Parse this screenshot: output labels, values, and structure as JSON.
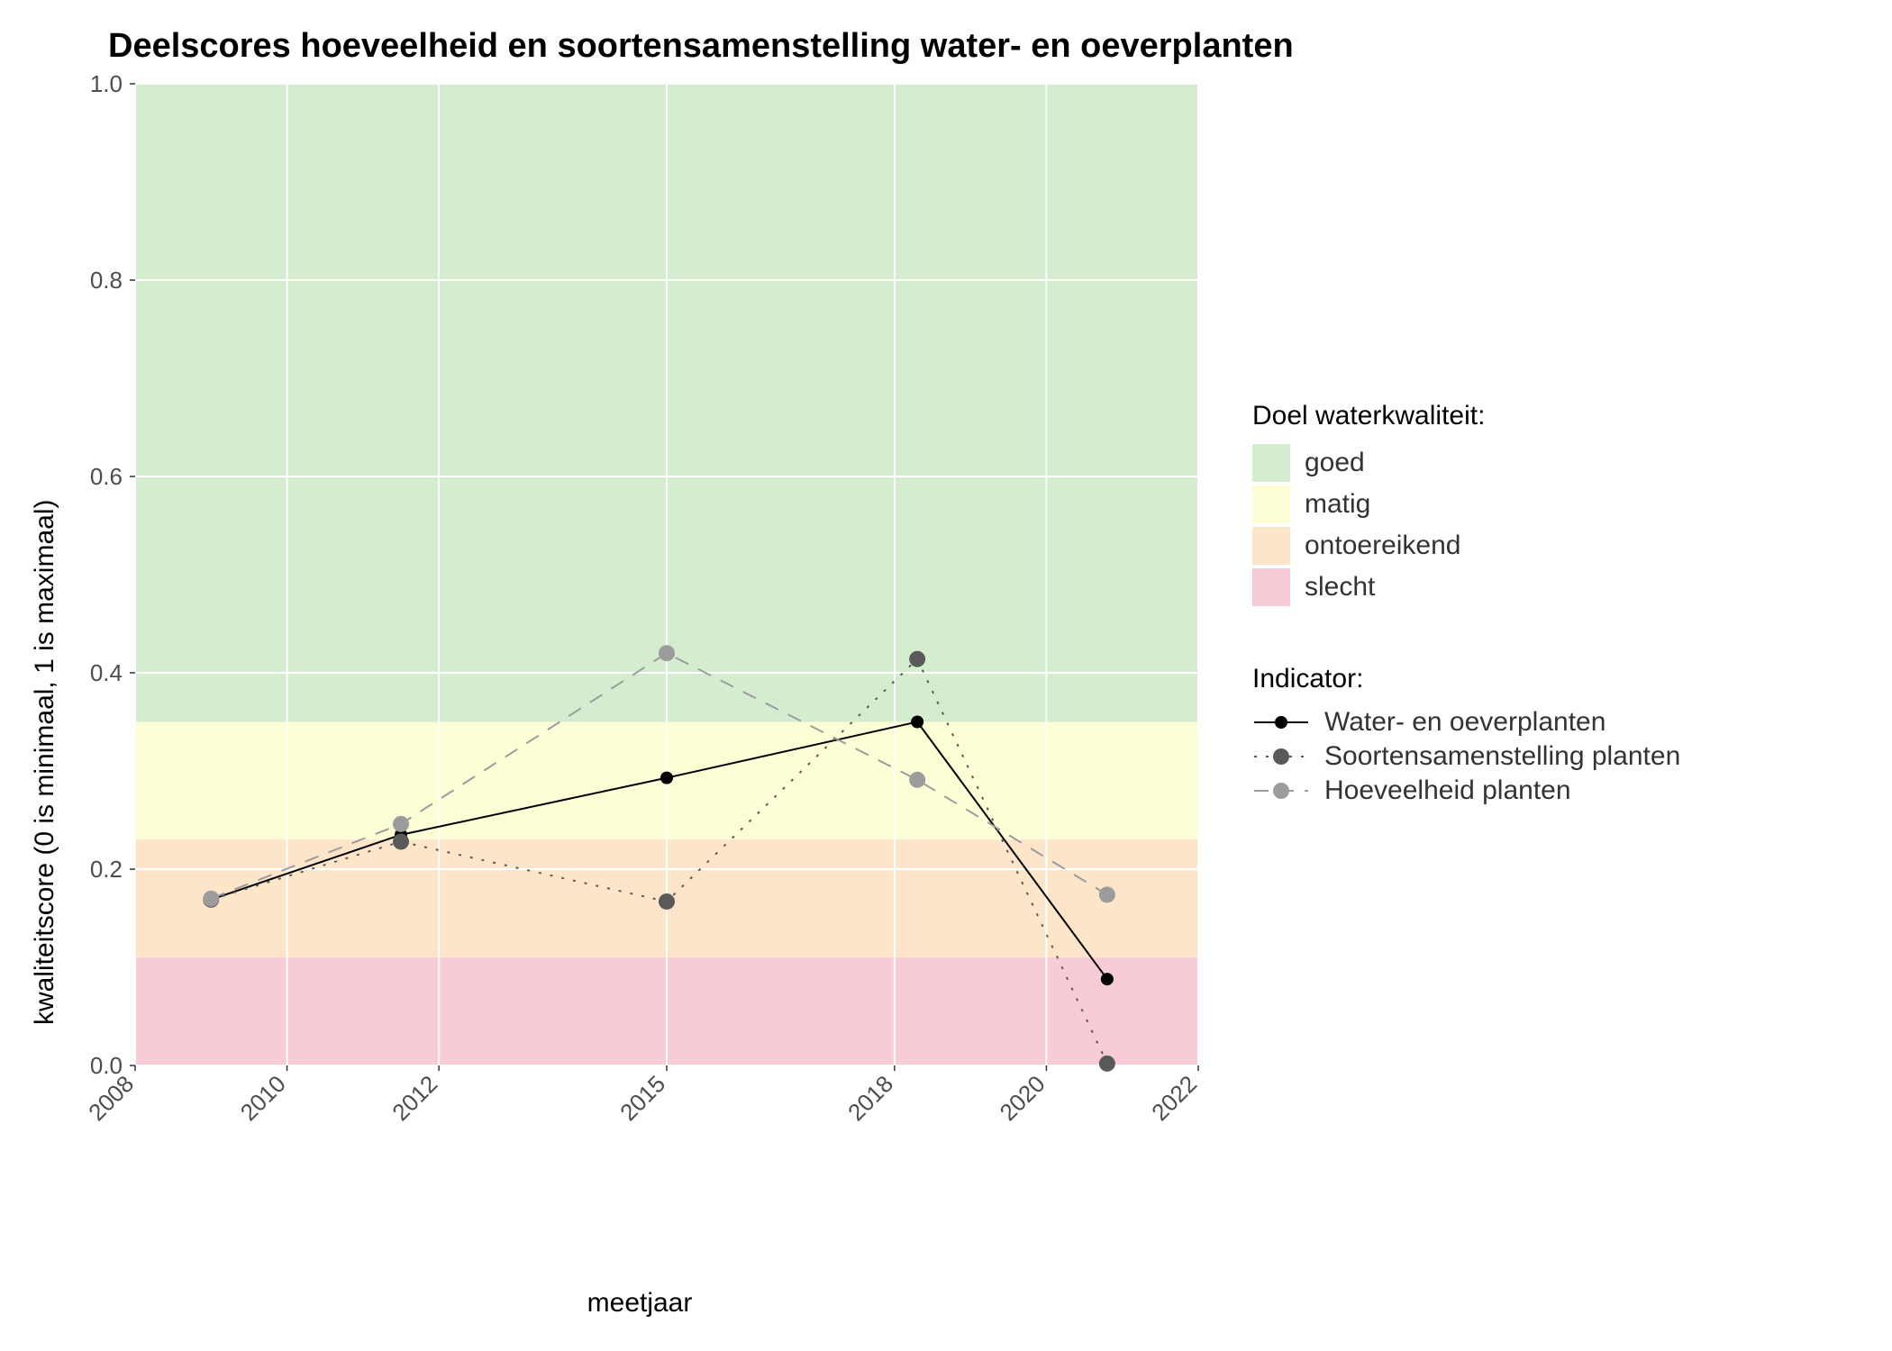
{
  "chart": {
    "type": "line",
    "title": "Deelscores hoeveelheid en soortensamenstelling water- en oeverplanten",
    "title_fontsize": 38,
    "xlabel": "meetjaar",
    "ylabel": "kwaliteitscore (0 is minimaal, 1 is maximaal)",
    "label_fontsize": 30,
    "tick_fontsize": 26,
    "xlim": [
      2008,
      2022
    ],
    "ylim": [
      0.0,
      1.0
    ],
    "xticks": [
      2008,
      2010,
      2012,
      2015,
      2018,
      2020,
      2022
    ],
    "yticks": [
      0.0,
      0.2,
      0.4,
      0.6,
      0.8,
      1.0
    ],
    "plot_background": "#ebebeb",
    "grid_color": "#ffffff",
    "axis_text_color": "#4d4d4d",
    "xtick_rotation": 45,
    "bands": [
      {
        "label": "goed",
        "from": 0.35,
        "to": 1.0,
        "color": "#d4edce"
      },
      {
        "label": "matig",
        "from": 0.23,
        "to": 0.35,
        "color": "#fdfdd6"
      },
      {
        "label": "ontoereikend",
        "from": 0.11,
        "to": 0.23,
        "color": "#fde5ca"
      },
      {
        "label": "slecht",
        "from": 0.0,
        "to": 0.11,
        "color": "#f7ccd6"
      }
    ],
    "series": [
      {
        "name": "Water- en oeverplanten",
        "color": "#000000",
        "marker_color": "#000000",
        "marker_size": 7,
        "line_width": 2,
        "dash": "solid",
        "x": [
          2009,
          2011.5,
          2015,
          2018.3,
          2020.8
        ],
        "y": [
          0.169,
          0.235,
          0.293,
          0.35,
          0.088
        ]
      },
      {
        "name": "Soortensamenstelling planten",
        "color": "#5a5a5a",
        "marker_color": "#5a5a5a",
        "marker_size": 9,
        "line_width": 2,
        "dash": "dotted",
        "x": [
          2009,
          2011.5,
          2015,
          2018.3,
          2020.8
        ],
        "y": [
          0.169,
          0.228,
          0.167,
          0.414,
          0.002
        ]
      },
      {
        "name": "Hoeveelheid planten",
        "color": "#9c9c9c",
        "marker_color": "#9c9c9c",
        "marker_size": 9,
        "line_width": 2,
        "dash": "dashed",
        "x": [
          2009,
          2011.5,
          2015,
          2018.3,
          2020.8
        ],
        "y": [
          0.17,
          0.246,
          0.42,
          0.291,
          0.174
        ]
      }
    ],
    "legend_band_title": "Doel waterkwaliteit:",
    "legend_series_title": "Indicator:"
  }
}
